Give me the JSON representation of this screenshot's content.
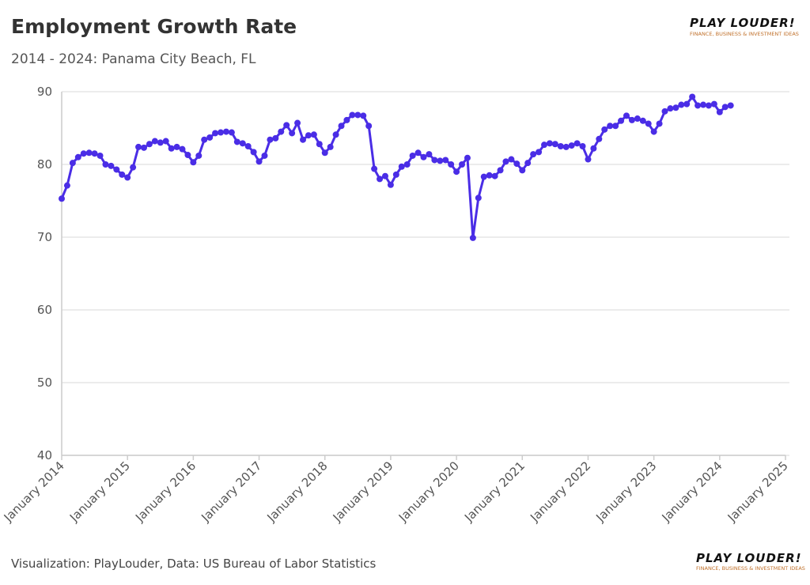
{
  "chart_data": {
    "type": "line",
    "title": "Employment Growth Rate",
    "subtitle": "2014 - 2024: Panama City Beach, FL",
    "caption": "Visualization: PlayLouder, Data: US Bureau of Labor Statistics",
    "brand": "PLAY LOUDER!",
    "brand_tagline": "FINANCE, BUSINESS & INVESTMENT IDEAS",
    "grid": true,
    "ylim": [
      40,
      90
    ],
    "yticks": [
      40,
      50,
      60,
      70,
      80,
      90
    ],
    "xlim": [
      "2014-01",
      "2025-01"
    ],
    "xticks": [
      {
        "value": "2014-01",
        "label": "January 2014"
      },
      {
        "value": "2015-01",
        "label": "January 2015"
      },
      {
        "value": "2016-01",
        "label": "January 2016"
      },
      {
        "value": "2017-01",
        "label": "January 2017"
      },
      {
        "value": "2018-01",
        "label": "January 2018"
      },
      {
        "value": "2019-01",
        "label": "January 2019"
      },
      {
        "value": "2020-01",
        "label": "January 2020"
      },
      {
        "value": "2021-01",
        "label": "January 2021"
      },
      {
        "value": "2022-01",
        "label": "January 2022"
      },
      {
        "value": "2023-01",
        "label": "January 2023"
      },
      {
        "value": "2024-01",
        "label": "January 2024"
      },
      {
        "value": "2025-01",
        "label": "January 2025"
      }
    ],
    "x": [
      "2014-01",
      "2014-02",
      "2014-03",
      "2014-04",
      "2014-05",
      "2014-06",
      "2014-07",
      "2014-08",
      "2014-09",
      "2014-10",
      "2014-11",
      "2014-12",
      "2015-01",
      "2015-02",
      "2015-03",
      "2015-04",
      "2015-05",
      "2015-06",
      "2015-07",
      "2015-08",
      "2015-09",
      "2015-10",
      "2015-11",
      "2015-12",
      "2016-01",
      "2016-02",
      "2016-03",
      "2016-04",
      "2016-05",
      "2016-06",
      "2016-07",
      "2016-08",
      "2016-09",
      "2016-10",
      "2016-11",
      "2016-12",
      "2017-01",
      "2017-02",
      "2017-03",
      "2017-04",
      "2017-05",
      "2017-06",
      "2017-07",
      "2017-08",
      "2017-09",
      "2017-10",
      "2017-11",
      "2017-12",
      "2018-01",
      "2018-02",
      "2018-03",
      "2018-04",
      "2018-05",
      "2018-06",
      "2018-07",
      "2018-08",
      "2018-09",
      "2018-10",
      "2018-11",
      "2018-12",
      "2019-01",
      "2019-02",
      "2019-03",
      "2019-04",
      "2019-05",
      "2019-06",
      "2019-07",
      "2019-08",
      "2019-09",
      "2019-10",
      "2019-11",
      "2019-12",
      "2020-01",
      "2020-02",
      "2020-03",
      "2020-04",
      "2020-05",
      "2020-06",
      "2020-07",
      "2020-08",
      "2020-09",
      "2020-10",
      "2020-11",
      "2020-12",
      "2021-01",
      "2021-02",
      "2021-03",
      "2021-04",
      "2021-05",
      "2021-06",
      "2021-07",
      "2021-08",
      "2021-09",
      "2021-10",
      "2021-11",
      "2021-12",
      "2022-01",
      "2022-02",
      "2022-03",
      "2022-04",
      "2022-05",
      "2022-06",
      "2022-07",
      "2022-08",
      "2022-09",
      "2022-10",
      "2022-11",
      "2022-12",
      "2023-01",
      "2023-02",
      "2023-03",
      "2023-04",
      "2023-05",
      "2023-06",
      "2023-07",
      "2023-08",
      "2023-09",
      "2023-10",
      "2023-11",
      "2023-12",
      "2024-01",
      "2024-02",
      "2024-03"
    ],
    "series": [
      {
        "color": "#4a2de6",
        "values": [
          75.3,
          77.1,
          80.2,
          81.0,
          81.5,
          81.6,
          81.5,
          81.2,
          80.0,
          79.8,
          79.3,
          78.6,
          78.2,
          79.6,
          82.4,
          82.3,
          82.8,
          83.2,
          83.0,
          83.2,
          82.2,
          82.4,
          82.1,
          81.3,
          80.3,
          81.2,
          83.4,
          83.7,
          84.3,
          84.4,
          84.5,
          84.4,
          83.1,
          82.9,
          82.5,
          81.7,
          80.4,
          81.2,
          83.4,
          83.6,
          84.5,
          85.4,
          84.3,
          85.7,
          83.4,
          84.0,
          84.1,
          82.8,
          81.6,
          82.4,
          84.1,
          85.3,
          86.1,
          86.8,
          86.8,
          86.7,
          85.3,
          79.4,
          78.0,
          78.4,
          77.2,
          78.6,
          79.7,
          80.0,
          81.2,
          81.6,
          81.0,
          81.4,
          80.6,
          80.5,
          80.6,
          80.0,
          79.0,
          80.0,
          80.9,
          69.9,
          75.4,
          78.3,
          78.5,
          78.4,
          79.2,
          80.4,
          80.7,
          80.1,
          79.2,
          80.2,
          81.4,
          81.7,
          82.7,
          82.9,
          82.8,
          82.5,
          82.4,
          82.6,
          82.9,
          82.5,
          80.7,
          82.2,
          83.5,
          84.8,
          85.3,
          85.3,
          86.0,
          86.7,
          86.1,
          86.3,
          86.0,
          85.6,
          84.5,
          85.6,
          87.3,
          87.7,
          87.8,
          88.2,
          88.3,
          89.3,
          88.1,
          88.2,
          88.1,
          88.3,
          87.2,
          87.9,
          88.1
        ]
      }
    ]
  }
}
